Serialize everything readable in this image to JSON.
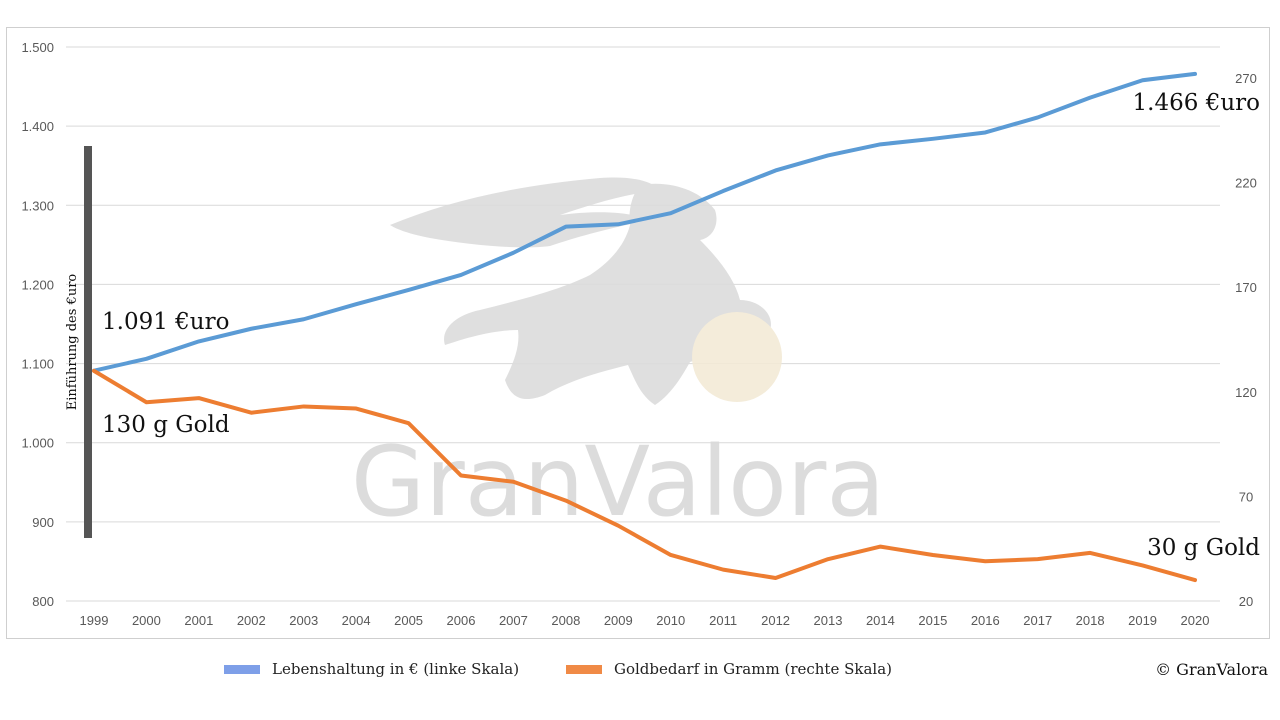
{
  "chart_data": {
    "type": "line",
    "x": [
      "1999",
      "2000",
      "2001",
      "2002",
      "2003",
      "2004",
      "2005",
      "2006",
      "2007",
      "2008",
      "2009",
      "2010",
      "2011",
      "2012",
      "2013",
      "2014",
      "2015",
      "2016",
      "2017",
      "2018",
      "2019",
      "2020"
    ],
    "series": [
      {
        "name": "Lebenshaltung in € (linke Skala)",
        "axis": "left",
        "color": "#5b9bd5",
        "values": [
          1091,
          1106,
          1128,
          1144,
          1156,
          1175,
          1193,
          1212,
          1240,
          1273,
          1276,
          1290,
          1318,
          1344,
          1363,
          1377,
          1384,
          1392,
          1411,
          1436,
          1458,
          1466
        ]
      },
      {
        "name": "Goldbedarf in Gramm (rechte Skala)",
        "axis": "right",
        "color": "#ed7d31",
        "values": [
          130,
          115,
          117,
          110,
          113,
          112,
          105,
          80,
          77,
          68,
          56,
          42,
          35,
          31,
          40,
          46,
          42,
          39,
          40,
          43,
          37,
          30
        ]
      }
    ],
    "y_left": {
      "min": 800,
      "max": 1500,
      "ticks": [
        800,
        900,
        1000,
        1100,
        1200,
        1300,
        1400,
        1500
      ],
      "tick_labels": [
        "800",
        "900",
        "1.000",
        "1.100",
        "1.200",
        "1.300",
        "1.400",
        "1.500"
      ]
    },
    "y_right": {
      "min": 20,
      "max": 270,
      "ticks": [
        20,
        70,
        120,
        170,
        220,
        270
      ],
      "tick_labels": [
        "20",
        "70",
        "120",
        "170",
        "220",
        "270"
      ]
    },
    "grid": true,
    "legend_position": "bottom",
    "annotations": {
      "start_euro": "1.091 €uro",
      "start_gold": "130 g Gold",
      "end_euro": "1.466 €uro",
      "end_gold": "30 g Gold",
      "vertical_label": "Einführung des €uro"
    },
    "watermark": "GranValora"
  },
  "legend": {
    "items": [
      {
        "label": "Lebenshaltung in € (linke Skala)",
        "color": "#7e9fe8"
      },
      {
        "label": "Goldbedarf in Gramm (rechte Skala)",
        "color": "#f08a46"
      }
    ]
  },
  "copyright": "© GranValora"
}
